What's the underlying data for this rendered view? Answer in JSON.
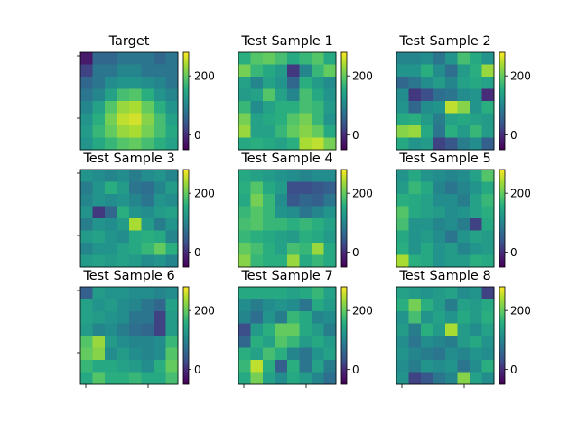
{
  "chart_data": {
    "type": "heatmap",
    "colormap": "viridis",
    "colorbar": {
      "min": -50,
      "max": 280,
      "ticks": [
        0,
        200
      ]
    },
    "panels": [
      {
        "title": "Target",
        "values": [
          [
            -20,
            60,
            60,
            80,
            80,
            80,
            60,
            80
          ],
          [
            20,
            80,
            80,
            100,
            100,
            80,
            80,
            80
          ],
          [
            60,
            80,
            110,
            120,
            120,
            110,
            100,
            80
          ],
          [
            80,
            100,
            140,
            180,
            190,
            160,
            120,
            100
          ],
          [
            100,
            140,
            190,
            230,
            240,
            200,
            160,
            120
          ],
          [
            120,
            160,
            210,
            250,
            260,
            220,
            180,
            140
          ],
          [
            130,
            170,
            200,
            230,
            240,
            210,
            180,
            150
          ],
          [
            120,
            150,
            170,
            190,
            200,
            180,
            160,
            140
          ]
        ]
      },
      {
        "title": "Test Sample 1",
        "values": [
          [
            160,
            190,
            200,
            180,
            150,
            170,
            190,
            150
          ],
          [
            210,
            170,
            150,
            130,
            10,
            100,
            170,
            200
          ],
          [
            140,
            100,
            140,
            120,
            60,
            160,
            130,
            110
          ],
          [
            130,
            140,
            190,
            140,
            100,
            180,
            150,
            120
          ],
          [
            170,
            110,
            140,
            160,
            160,
            180,
            170,
            130
          ],
          [
            210,
            140,
            150,
            160,
            190,
            210,
            170,
            120
          ],
          [
            230,
            140,
            140,
            170,
            200,
            220,
            200,
            150
          ],
          [
            150,
            160,
            150,
            140,
            160,
            240,
            250,
            210
          ]
        ]
      },
      {
        "title": "Test Sample 2",
        "values": [
          [
            100,
            100,
            110,
            80,
            120,
            180,
            150,
            120
          ],
          [
            120,
            120,
            160,
            110,
            70,
            130,
            160,
            230
          ],
          [
            60,
            80,
            110,
            130,
            100,
            140,
            150,
            140
          ],
          [
            110,
            10,
            30,
            70,
            80,
            110,
            120,
            0
          ],
          [
            120,
            60,
            110,
            120,
            250,
            220,
            120,
            160
          ],
          [
            150,
            160,
            130,
            90,
            140,
            150,
            140,
            130
          ],
          [
            220,
            230,
            150,
            80,
            160,
            130,
            170,
            130
          ],
          [
            150,
            120,
            130,
            20,
            40,
            90,
            110,
            50
          ]
        ]
      },
      {
        "title": "Test Sample 3",
        "values": [
          [
            120,
            110,
            100,
            110,
            90,
            110,
            120,
            100
          ],
          [
            90,
            120,
            160,
            130,
            80,
            70,
            100,
            130
          ],
          [
            100,
            120,
            110,
            120,
            100,
            80,
            120,
            110
          ],
          [
            120,
            10,
            60,
            160,
            120,
            110,
            130,
            140
          ],
          [
            90,
            120,
            110,
            130,
            240,
            130,
            90,
            120
          ],
          [
            130,
            140,
            120,
            110,
            150,
            160,
            150,
            100
          ],
          [
            100,
            120,
            120,
            140,
            150,
            170,
            200,
            160
          ],
          [
            130,
            140,
            130,
            140,
            130,
            110,
            120,
            100
          ]
        ]
      },
      {
        "title": "Test Sample 4",
        "values": [
          [
            150,
            140,
            130,
            120,
            110,
            100,
            110,
            110
          ],
          [
            160,
            190,
            150,
            130,
            30,
            30,
            40,
            50
          ],
          [
            150,
            210,
            170,
            110,
            40,
            60,
            50,
            80
          ],
          [
            170,
            190,
            170,
            120,
            110,
            80,
            100,
            120
          ],
          [
            180,
            190,
            170,
            170,
            160,
            170,
            160,
            140
          ],
          [
            170,
            160,
            150,
            140,
            130,
            160,
            150,
            130
          ],
          [
            200,
            180,
            160,
            140,
            180,
            170,
            230,
            150
          ],
          [
            220,
            170,
            160,
            160,
            230,
            150,
            170,
            150
          ]
        ]
      },
      {
        "title": "Test Sample 5",
        "values": [
          [
            120,
            150,
            120,
            110,
            100,
            110,
            140,
            190
          ],
          [
            130,
            170,
            150,
            100,
            80,
            100,
            120,
            150
          ],
          [
            160,
            150,
            140,
            110,
            110,
            90,
            140,
            170
          ],
          [
            190,
            150,
            140,
            130,
            110,
            120,
            140,
            160
          ],
          [
            180,
            120,
            120,
            100,
            110,
            90,
            20,
            150
          ],
          [
            150,
            120,
            130,
            110,
            80,
            120,
            140,
            130
          ],
          [
            160,
            120,
            150,
            120,
            130,
            100,
            120,
            130
          ],
          [
            240,
            160,
            150,
            120,
            130,
            130,
            160,
            150
          ]
        ]
      },
      {
        "title": "Test Sample 6",
        "values": [
          [
            50,
            130,
            120,
            120,
            110,
            110,
            100,
            110
          ],
          [
            140,
            120,
            130,
            110,
            100,
            80,
            60,
            140
          ],
          [
            140,
            130,
            120,
            110,
            80,
            80,
            20,
            130
          ],
          [
            130,
            100,
            110,
            90,
            70,
            60,
            20,
            130
          ],
          [
            190,
            230,
            130,
            110,
            100,
            100,
            110,
            170
          ],
          [
            200,
            220,
            110,
            130,
            110,
            100,
            110,
            190
          ],
          [
            170,
            150,
            150,
            140,
            130,
            110,
            160,
            200
          ],
          [
            150,
            190,
            160,
            160,
            170,
            150,
            150,
            180
          ]
        ]
      },
      {
        "title": "Test Sample 7",
        "values": [
          [
            150,
            150,
            150,
            150,
            140,
            150,
            170,
            140
          ],
          [
            110,
            90,
            110,
            120,
            110,
            80,
            150,
            130
          ],
          [
            100,
            70,
            120,
            90,
            170,
            150,
            100,
            110
          ],
          [
            30,
            130,
            160,
            200,
            200,
            150,
            130,
            90
          ],
          [
            60,
            160,
            140,
            190,
            170,
            130,
            150,
            130
          ],
          [
            160,
            140,
            180,
            160,
            100,
            80,
            120,
            140
          ],
          [
            170,
            250,
            160,
            50,
            160,
            80,
            140,
            90
          ],
          [
            150,
            210,
            140,
            110,
            150,
            130,
            100,
            70
          ]
        ]
      },
      {
        "title": "Test Sample 8",
        "values": [
          [
            140,
            130,
            120,
            130,
            140,
            110,
            120,
            20
          ],
          [
            160,
            210,
            160,
            130,
            90,
            140,
            130,
            150
          ],
          [
            120,
            180,
            120,
            140,
            120,
            150,
            130,
            160
          ],
          [
            130,
            90,
            160,
            130,
            240,
            130,
            110,
            140
          ],
          [
            110,
            80,
            110,
            100,
            90,
            130,
            150,
            120
          ],
          [
            120,
            100,
            90,
            80,
            110,
            100,
            120,
            110
          ],
          [
            110,
            90,
            120,
            110,
            120,
            80,
            110,
            160
          ],
          [
            120,
            20,
            40,
            80,
            100,
            220,
            140,
            110
          ]
        ]
      }
    ]
  }
}
